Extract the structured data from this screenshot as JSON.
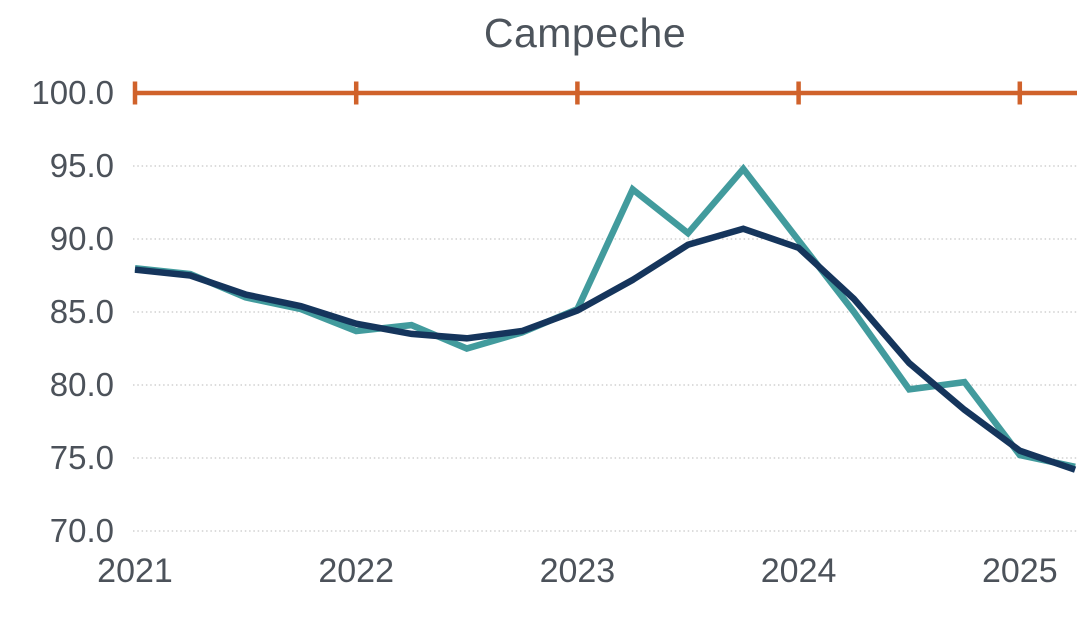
{
  "title": "Campeche",
  "chart_data": {
    "type": "line",
    "title": "Campeche",
    "xlabel": "",
    "ylabel": "",
    "categories": [
      "2021Q1",
      "2021Q2",
      "2021Q3",
      "2021Q4",
      "2022Q1",
      "2022Q2",
      "2022Q3",
      "2022Q4",
      "2023Q1",
      "2023Q2",
      "2023Q3",
      "2023Q4",
      "2024Q1",
      "2024Q2",
      "2024Q3",
      "2024Q4",
      "2025Q1",
      "2025Q2"
    ],
    "series": [
      {
        "name": "teal-series",
        "color": "#429b9d",
        "values": [
          88.0,
          87.6,
          86.0,
          85.2,
          83.7,
          84.1,
          82.5,
          83.6,
          85.2,
          93.4,
          90.4,
          94.8,
          89.9,
          85.0,
          79.7,
          80.2,
          75.2,
          74.4
        ]
      },
      {
        "name": "navy-series",
        "color": "#15355c",
        "values": [
          87.9,
          87.5,
          86.2,
          85.4,
          84.2,
          83.5,
          83.2,
          83.7,
          85.1,
          87.2,
          89.6,
          90.7,
          89.4,
          85.9,
          81.5,
          78.3,
          75.5,
          74.2
        ]
      }
    ],
    "x_tick_labels": [
      "2021",
      "2022",
      "2023",
      "2024",
      "2025"
    ],
    "y_tick_labels": [
      "100.0",
      "95.0",
      "90.0",
      "85.0",
      "80.0",
      "75.0",
      "70.0"
    ],
    "y_tick_values": [
      100,
      95,
      90,
      85,
      80,
      75,
      70
    ],
    "ylim": [
      70,
      100
    ],
    "top_axis_value": 100,
    "top_axis_color": "#d0622b",
    "grid": "dotted-horizontal",
    "gridline_color": "#c7c7c7",
    "text_color": "#4c525a",
    "legend_position": "none"
  }
}
